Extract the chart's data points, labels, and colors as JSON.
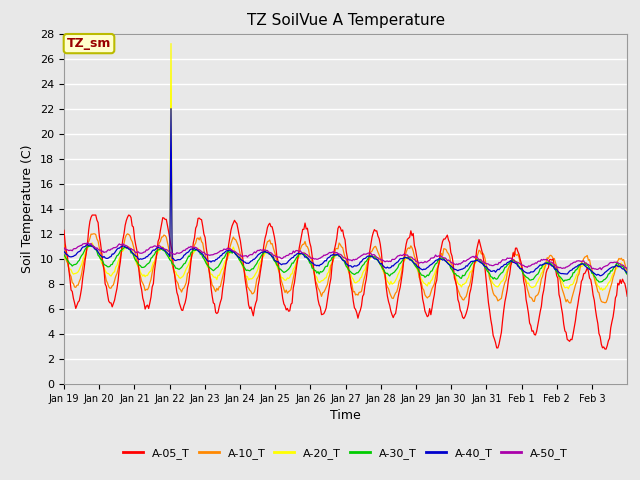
{
  "title": "TZ SoilVue A Temperature",
  "xlabel": "Time",
  "ylabel": "Soil Temperature (C)",
  "annotation_text": "TZ_sm",
  "annotation_bg": "#ffffcc",
  "annotation_border": "#bbbb00",
  "annotation_text_color": "#990000",
  "ylim": [
    0,
    28
  ],
  "yticks": [
    0,
    2,
    4,
    6,
    8,
    10,
    12,
    14,
    16,
    18,
    20,
    22,
    24,
    26,
    28
  ],
  "bg_color": "#e8e8e8",
  "plot_bg": "#e8e8e8",
  "grid_color": "#ffffff",
  "series_colors": {
    "A-05_T": "#ff0000",
    "A-10_T": "#ff8800",
    "A-20_T": "#ffff00",
    "A-30_T": "#00cc00",
    "A-40_T": "#0000cc",
    "A-50_T": "#aa00aa"
  },
  "x_tick_labels": [
    "Jan 19",
    "Jan 20",
    "Jan 21",
    "Jan 22",
    "Jan 23",
    "Jan 24",
    "Jan 25",
    "Jan 26",
    "Jan 27",
    "Jan 28",
    "Jan 29",
    "Jan 30",
    "Jan 31",
    "Feb 1",
    "Feb 2",
    "Feb 3"
  ],
  "n_points": 480
}
